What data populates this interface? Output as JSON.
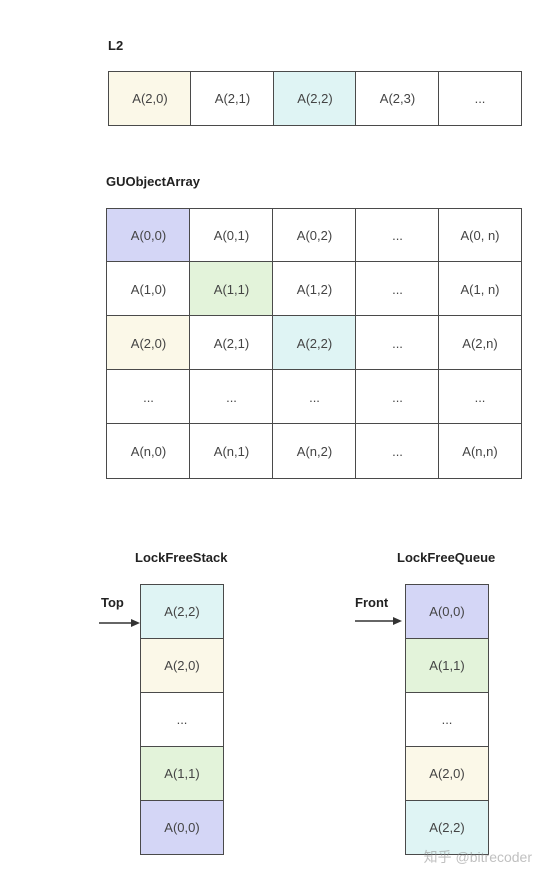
{
  "colors": {
    "yellow": "#fbf8e8",
    "cyan": "#dff4f4",
    "purple": "#d4d6f6",
    "green": "#e3f3da",
    "border": "#4a4a4a"
  },
  "l2": {
    "title": "L2",
    "cells": [
      "A(2,0)",
      "A(2,1)",
      "A(2,2)",
      "A(2,3)",
      "..."
    ]
  },
  "guobjectarray": {
    "title": "GUObjectArray",
    "rows": [
      [
        "A(0,0)",
        "A(0,1)",
        "A(0,2)",
        "...",
        "A(0, n)"
      ],
      [
        "A(1,0)",
        "A(1,1)",
        "A(1,2)",
        "...",
        "A(1, n)"
      ],
      [
        "A(2,0)",
        "A(2,1)",
        "A(2,2)",
        "...",
        "A(2,n)"
      ],
      [
        "...",
        "...",
        "...",
        "...",
        "..."
      ],
      [
        "A(n,0)",
        "A(n,1)",
        "A(n,2)",
        "...",
        "A(n,n)"
      ]
    ]
  },
  "stack": {
    "title": "LockFreeStack",
    "pointer_label": "Top",
    "cells": [
      "A(2,2)",
      "A(2,0)",
      "...",
      "A(1,1)",
      "A(0,0)"
    ]
  },
  "queue": {
    "title": "LockFreeQueue",
    "pointer_label": "Front",
    "cells": [
      "A(0,0)",
      "A(1,1)",
      "...",
      "A(2,0)",
      "A(2,2)"
    ]
  },
  "watermark": "知乎 @bitrecoder"
}
